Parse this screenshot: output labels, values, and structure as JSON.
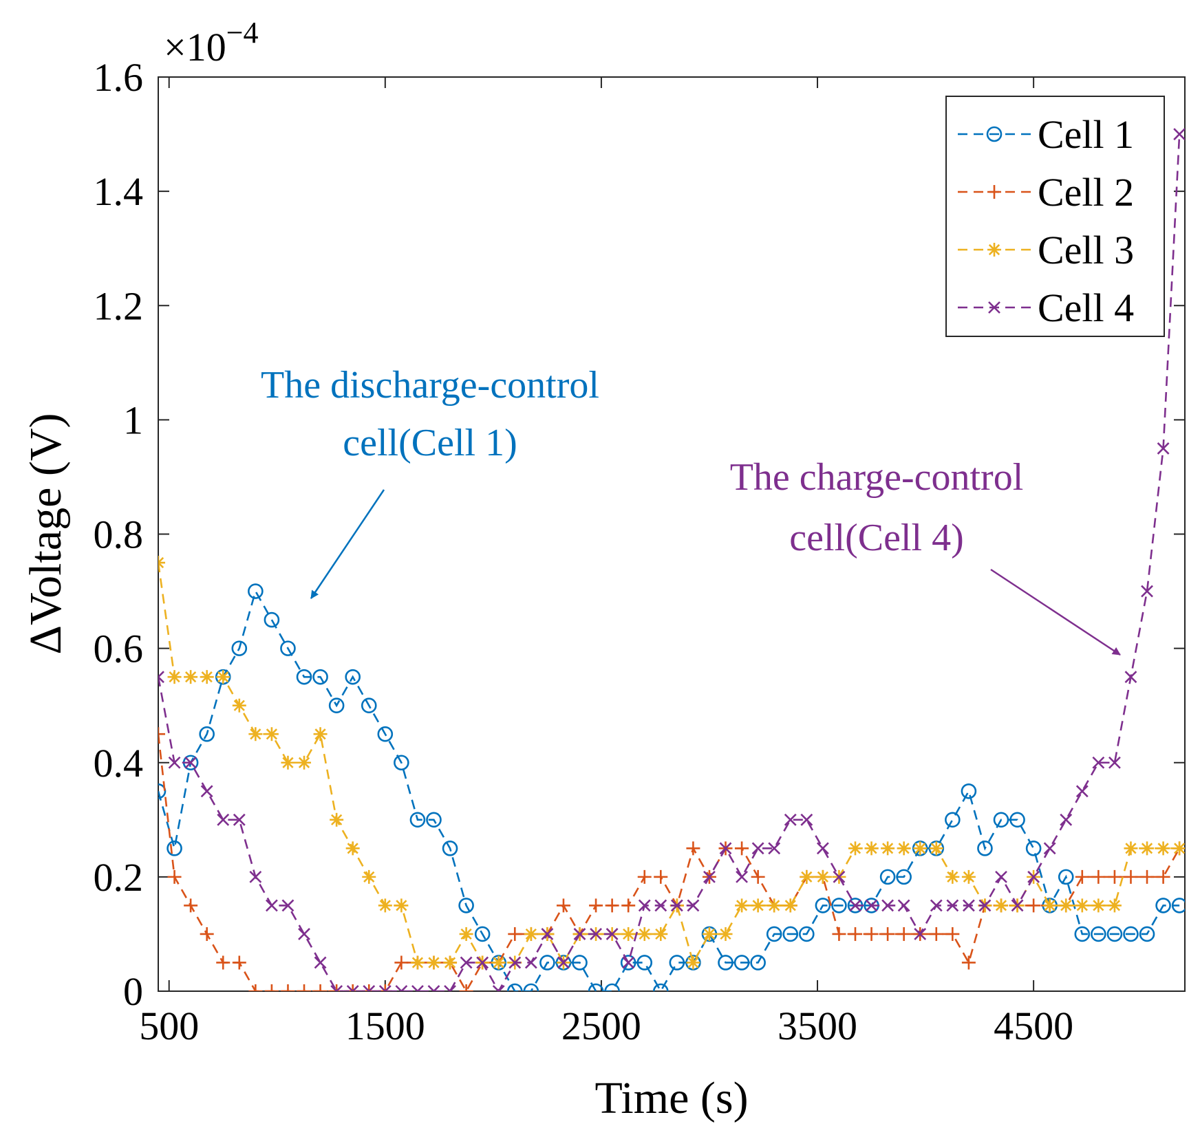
{
  "chart_data": {
    "type": "line",
    "title": "",
    "xlabel": "Time (s)",
    "ylabel": "ΔVoltage (V)",
    "y_exponent": "×10",
    "y_exponent_power": "−4",
    "xlim": [
      450,
      5200
    ],
    "ylim": [
      0,
      1.6
    ],
    "grid": false,
    "legend_position": "top-right",
    "xticks": [
      500,
      1500,
      2500,
      3500,
      4500
    ],
    "xtick_labels": [
      "500",
      "1500",
      "2500",
      "3500",
      "4500"
    ],
    "yticks": [
      0,
      0.2,
      0.4,
      0.6,
      0.8,
      1.0,
      1.2,
      1.4,
      1.6
    ],
    "ytick_labels": [
      "0",
      "0.2",
      "0.4",
      "0.6",
      "0.8",
      "1",
      "1.2",
      "1.4",
      "1.6"
    ],
    "x": [
      450,
      525,
      600,
      675,
      750,
      825,
      900,
      975,
      1050,
      1125,
      1200,
      1275,
      1350,
      1425,
      1500,
      1575,
      1650,
      1725,
      1800,
      1875,
      1950,
      2025,
      2100,
      2175,
      2250,
      2325,
      2400,
      2475,
      2550,
      2625,
      2700,
      2775,
      2850,
      2925,
      3000,
      3075,
      3150,
      3225,
      3300,
      3375,
      3450,
      3525,
      3600,
      3675,
      3750,
      3825,
      3900,
      3975,
      4050,
      4125,
      4200,
      4275,
      4350,
      4425,
      4500,
      4575,
      4650,
      4725,
      4800,
      4875,
      4950,
      5025,
      5100,
      5175
    ],
    "series": [
      {
        "name": "Cell 1",
        "color": "#0072BD",
        "marker": "circle",
        "values": [
          0.35,
          0.25,
          0.4,
          0.45,
          0.55,
          0.6,
          0.7,
          0.65,
          0.6,
          0.55,
          0.55,
          0.5,
          0.55,
          0.5,
          0.45,
          0.4,
          0.3,
          0.3,
          0.25,
          0.15,
          0.1,
          0.05,
          0.0,
          0.0,
          0.05,
          0.05,
          0.05,
          0.0,
          0.0,
          0.05,
          0.05,
          0.0,
          0.05,
          0.05,
          0.1,
          0.05,
          0.05,
          0.05,
          0.1,
          0.1,
          0.1,
          0.15,
          0.15,
          0.15,
          0.15,
          0.2,
          0.2,
          0.25,
          0.25,
          0.3,
          0.35,
          0.25,
          0.3,
          0.3,
          0.25,
          0.15,
          0.2,
          0.1,
          0.1,
          0.1,
          0.1,
          0.1,
          0.15,
          0.15
        ]
      },
      {
        "name": "Cell 2",
        "color": "#D95319",
        "marker": "plus",
        "values": [
          0.45,
          0.2,
          0.15,
          0.1,
          0.05,
          0.05,
          0.0,
          0.0,
          0.0,
          0.0,
          0.0,
          0.0,
          0.0,
          0.0,
          0.0,
          0.05,
          0.05,
          0.05,
          0.05,
          0.0,
          0.05,
          0.05,
          0.1,
          0.1,
          0.1,
          0.15,
          0.1,
          0.15,
          0.15,
          0.15,
          0.2,
          0.2,
          0.15,
          0.25,
          0.2,
          0.25,
          0.25,
          0.2,
          0.15,
          0.15,
          0.2,
          0.2,
          0.1,
          0.1,
          0.1,
          0.1,
          0.1,
          0.1,
          0.1,
          0.1,
          0.05,
          0.15,
          0.15,
          0.15,
          0.15,
          0.15,
          0.15,
          0.2,
          0.2,
          0.2,
          0.2,
          0.2,
          0.2,
          0.25
        ]
      },
      {
        "name": "Cell 3",
        "color": "#EDB120",
        "marker": "asterisk",
        "values": [
          0.75,
          0.55,
          0.55,
          0.55,
          0.55,
          0.5,
          0.45,
          0.45,
          0.4,
          0.4,
          0.45,
          0.3,
          0.25,
          0.2,
          0.15,
          0.15,
          0.05,
          0.05,
          0.05,
          0.1,
          0.05,
          0.05,
          0.05,
          0.1,
          0.1,
          0.05,
          0.1,
          0.1,
          0.1,
          0.1,
          0.1,
          0.1,
          0.15,
          0.05,
          0.1,
          0.1,
          0.15,
          0.15,
          0.15,
          0.15,
          0.2,
          0.2,
          0.2,
          0.25,
          0.25,
          0.25,
          0.25,
          0.25,
          0.25,
          0.2,
          0.2,
          0.15,
          0.15,
          0.15,
          0.2,
          0.15,
          0.15,
          0.15,
          0.15,
          0.15,
          0.25,
          0.25,
          0.25,
          0.25
        ]
      },
      {
        "name": "Cell 4",
        "color": "#7E2F8E",
        "marker": "cross",
        "values": [
          0.55,
          0.4,
          0.4,
          0.35,
          0.3,
          0.3,
          0.2,
          0.15,
          0.15,
          0.1,
          0.05,
          0.0,
          0.0,
          0.0,
          0.0,
          0.0,
          0.0,
          0.0,
          0.0,
          0.05,
          0.05,
          0.0,
          0.05,
          0.05,
          0.1,
          0.05,
          0.1,
          0.1,
          0.1,
          0.05,
          0.15,
          0.15,
          0.15,
          0.15,
          0.2,
          0.25,
          0.2,
          0.25,
          0.25,
          0.3,
          0.3,
          0.25,
          0.2,
          0.15,
          0.15,
          0.15,
          0.15,
          0.1,
          0.15,
          0.15,
          0.15,
          0.15,
          0.2,
          0.15,
          0.2,
          0.25,
          0.3,
          0.35,
          0.4,
          0.4,
          0.55,
          0.7,
          0.95,
          1.5
        ]
      }
    ],
    "annotations": [
      {
        "id": "discharge",
        "lines": [
          "The discharge-control",
          "cell(Cell 1)"
        ],
        "color": "#0072BD",
        "points_to": {
          "x": 1150,
          "y": 0.68
        }
      },
      {
        "id": "charge",
        "lines": [
          "The charge-control",
          "cell(Cell 4)"
        ],
        "color": "#7E2F8E",
        "points_to": {
          "x": 4830,
          "y": 0.58
        }
      }
    ]
  }
}
